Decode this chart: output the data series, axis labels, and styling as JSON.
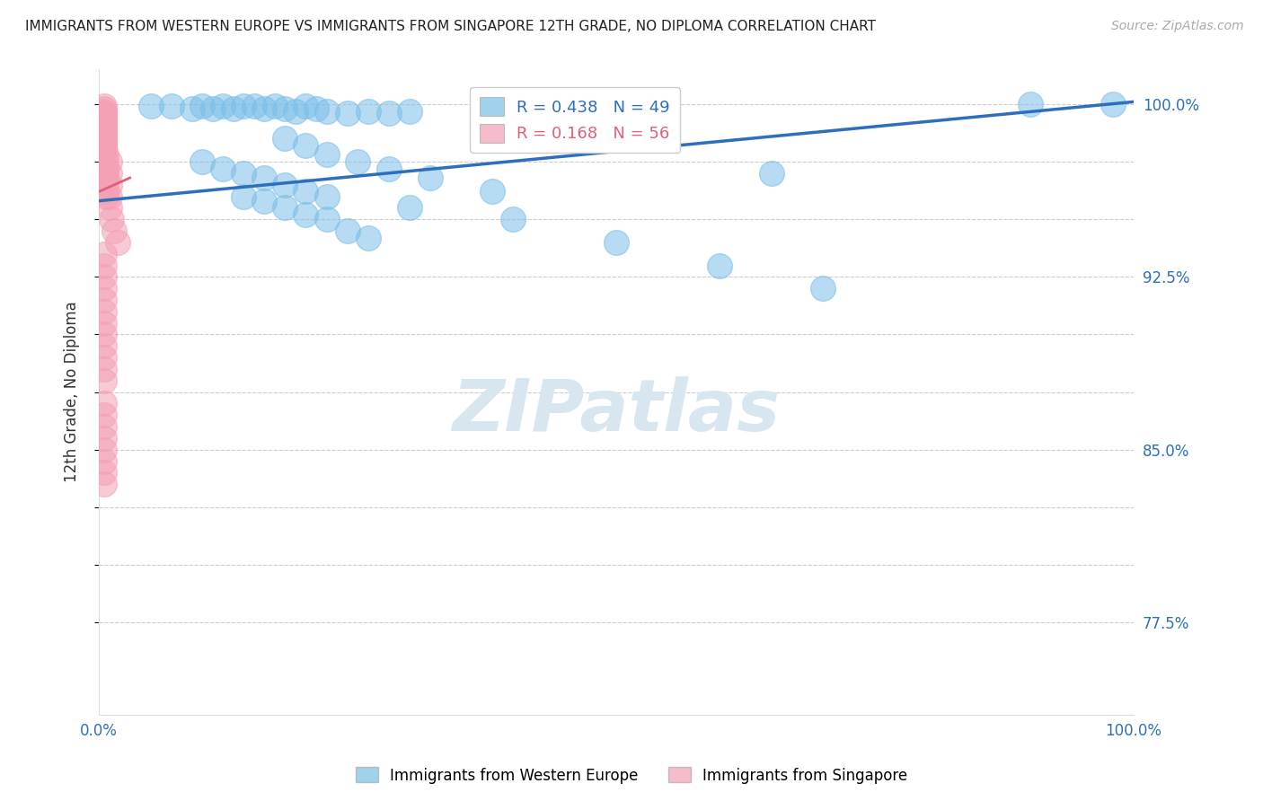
{
  "title": "IMMIGRANTS FROM WESTERN EUROPE VS IMMIGRANTS FROM SINGAPORE 12TH GRADE, NO DIPLOMA CORRELATION CHART",
  "source_text": "Source: ZipAtlas.com",
  "ylabel": "12th Grade, No Diploma",
  "xmin": 0.0,
  "xmax": 1.0,
  "ymin": 0.735,
  "ymax": 1.015,
  "blue_R": 0.438,
  "blue_N": 49,
  "pink_R": 0.168,
  "pink_N": 56,
  "blue_color": "#7bbee8",
  "pink_color": "#f4a0b5",
  "trend_blue": "#2d6fba",
  "trend_pink": "#e0607a",
  "watermark": "ZIPatlas",
  "watermark_color": "#d8e6f0",
  "legend_blue": "Immigrants from Western Europe",
  "legend_pink": "Immigrants from Singapore",
  "blue_trend_x0": 0.0,
  "blue_trend_y0": 0.958,
  "blue_trend_x1": 1.0,
  "blue_trend_y1": 1.001,
  "pink_trend_x0": 0.0,
  "pink_trend_y0": 0.962,
  "pink_trend_x1": 0.03,
  "pink_trend_y1": 0.968,
  "blue_x": [
    0.05,
    0.07,
    0.09,
    0.1,
    0.11,
    0.12,
    0.13,
    0.14,
    0.15,
    0.16,
    0.17,
    0.18,
    0.19,
    0.2,
    0.21,
    0.22,
    0.24,
    0.26,
    0.28,
    0.3,
    0.18,
    0.2,
    0.22,
    0.25,
    0.28,
    0.32,
    0.38,
    0.1,
    0.12,
    0.14,
    0.16,
    0.18,
    0.2,
    0.22,
    0.3,
    0.4,
    0.5,
    0.6,
    0.65,
    0.7,
    0.14,
    0.16,
    0.18,
    0.2,
    0.22,
    0.24,
    0.26,
    0.9,
    0.98
  ],
  "blue_y": [
    0.999,
    0.999,
    0.998,
    0.999,
    0.998,
    0.999,
    0.998,
    0.999,
    0.999,
    0.998,
    0.999,
    0.998,
    0.997,
    0.999,
    0.998,
    0.997,
    0.996,
    0.997,
    0.996,
    0.997,
    0.985,
    0.982,
    0.978,
    0.975,
    0.972,
    0.968,
    0.962,
    0.975,
    0.972,
    0.97,
    0.968,
    0.965,
    0.962,
    0.96,
    0.955,
    0.95,
    0.94,
    0.93,
    0.97,
    0.92,
    0.96,
    0.958,
    0.955,
    0.952,
    0.95,
    0.945,
    0.942,
    1.0,
    1.0
  ],
  "pink_x": [
    0.005,
    0.005,
    0.005,
    0.005,
    0.005,
    0.005,
    0.005,
    0.005,
    0.005,
    0.005,
    0.005,
    0.005,
    0.005,
    0.005,
    0.005,
    0.005,
    0.005,
    0.005,
    0.005,
    0.005,
    0.007,
    0.007,
    0.007,
    0.007,
    0.007,
    0.007,
    0.007,
    0.007,
    0.01,
    0.01,
    0.01,
    0.01,
    0.01,
    0.012,
    0.015,
    0.018,
    0.005,
    0.005,
    0.005,
    0.005,
    0.005,
    0.005,
    0.005,
    0.005,
    0.005,
    0.005,
    0.005,
    0.005,
    0.005,
    0.005,
    0.005,
    0.005,
    0.005,
    0.005,
    0.005,
    0.005
  ],
  "pink_y": [
    0.999,
    0.998,
    0.997,
    0.996,
    0.995,
    0.994,
    0.993,
    0.992,
    0.991,
    0.99,
    0.989,
    0.988,
    0.987,
    0.986,
    0.985,
    0.984,
    0.983,
    0.982,
    0.981,
    0.98,
    0.978,
    0.975,
    0.972,
    0.97,
    0.968,
    0.965,
    0.962,
    0.96,
    0.975,
    0.97,
    0.965,
    0.96,
    0.955,
    0.95,
    0.945,
    0.94,
    0.935,
    0.93,
    0.925,
    0.92,
    0.915,
    0.91,
    0.905,
    0.9,
    0.895,
    0.89,
    0.885,
    0.88,
    0.87,
    0.865,
    0.86,
    0.855,
    0.85,
    0.845,
    0.84,
    0.835
  ]
}
